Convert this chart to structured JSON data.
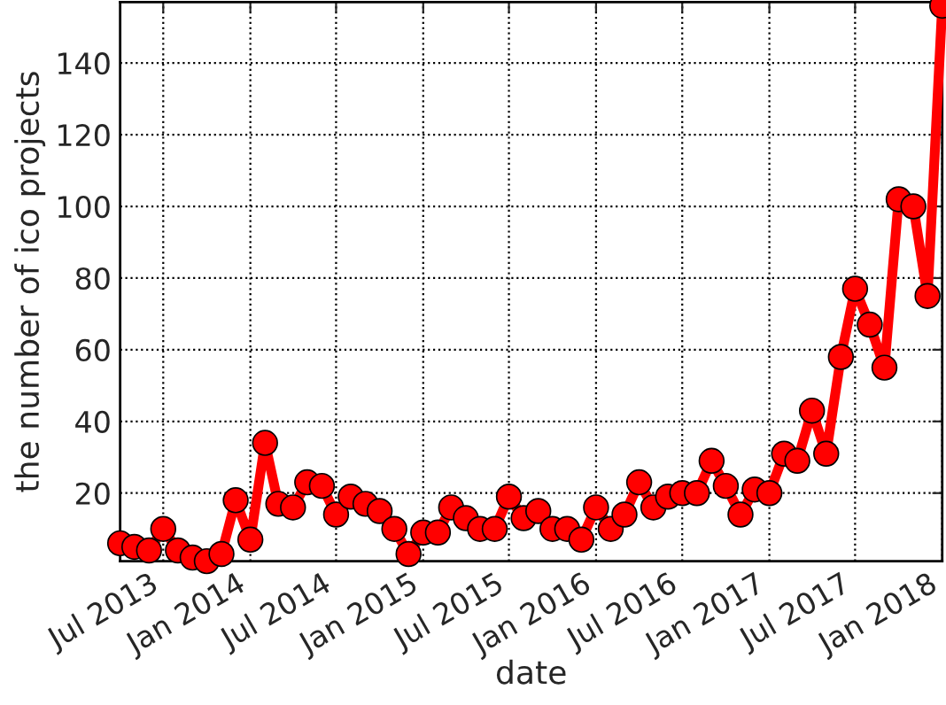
{
  "chart_data": {
    "type": "line",
    "xlabel": "date",
    "ylabel": "the number of ico projects",
    "x": [
      "2013-04",
      "2013-05",
      "2013-06",
      "2013-07",
      "2013-08",
      "2013-09",
      "2013-10",
      "2013-11",
      "2013-12",
      "2014-01",
      "2014-02",
      "2014-03",
      "2014-04",
      "2014-05",
      "2014-06",
      "2014-07",
      "2014-08",
      "2014-09",
      "2014-10",
      "2014-11",
      "2014-12",
      "2015-01",
      "2015-02",
      "2015-03",
      "2015-04",
      "2015-05",
      "2015-06",
      "2015-07",
      "2015-08",
      "2015-09",
      "2015-10",
      "2015-11",
      "2015-12",
      "2016-01",
      "2016-02",
      "2016-03",
      "2016-04",
      "2016-05",
      "2016-06",
      "2016-07",
      "2016-08",
      "2016-09",
      "2016-10",
      "2016-11",
      "2016-12",
      "2017-01",
      "2017-02",
      "2017-03",
      "2017-04",
      "2017-05",
      "2017-06",
      "2017-07",
      "2017-08",
      "2017-09",
      "2017-10",
      "2017-11",
      "2017-12",
      "2018-01"
    ],
    "series": [
      {
        "color": "#ff0000",
        "values": [
          6,
          5,
          4,
          10,
          4,
          2,
          1,
          3,
          18,
          7,
          34,
          17,
          16,
          23,
          22,
          14,
          19,
          17,
          15,
          10,
          3,
          9,
          9,
          16,
          13,
          10,
          10,
          19,
          13,
          15,
          10,
          10,
          7,
          16,
          10,
          14,
          23,
          16,
          19,
          20,
          20,
          29,
          22,
          14,
          21,
          20,
          31,
          29,
          43,
          31,
          58,
          77,
          67,
          55,
          102,
          100,
          75,
          156
        ]
      }
    ],
    "xlim": [
      "2013-04",
      "2018-01"
    ],
    "xticks": [
      {
        "value": "2013-07",
        "label": "Jul 2013"
      },
      {
        "value": "2014-01",
        "label": "Jan 2014"
      },
      {
        "value": "2014-07",
        "label": "Jul 2014"
      },
      {
        "value": "2015-01",
        "label": "Jan 2015"
      },
      {
        "value": "2015-07",
        "label": "Jul 2015"
      },
      {
        "value": "2016-01",
        "label": "Jan 2016"
      },
      {
        "value": "2016-07",
        "label": "Jul 2016"
      },
      {
        "value": "2017-01",
        "label": "Jan 2017"
      },
      {
        "value": "2017-07",
        "label": "Jul 2017"
      },
      {
        "value": "2018-01",
        "label": "Jan 2018"
      }
    ],
    "ylim": [
      1,
      157
    ],
    "yticks": [
      20,
      40,
      60,
      80,
      100,
      120,
      140
    ],
    "grid": true,
    "marker": "circle",
    "line_style": "solid"
  }
}
